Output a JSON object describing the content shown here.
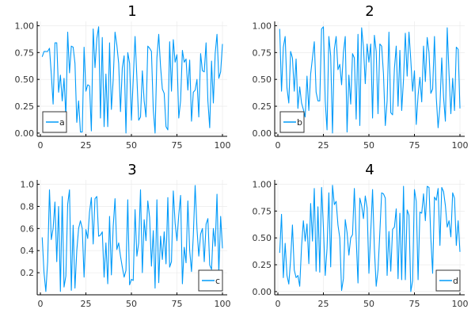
{
  "chart_data": [
    {
      "type": "line",
      "title": "1",
      "legend": "bottom-left",
      "color": "#009af9",
      "grid": true,
      "xlim": [
        0,
        100
      ],
      "ylim": [
        -0.03,
        1.04
      ],
      "xticks": [
        0,
        25,
        50,
        75,
        100
      ],
      "yticks": [
        0,
        0.25,
        0.5,
        0.75,
        1.0
      ],
      "ytick_labels": [
        "0.00",
        "0.25",
        "0.50",
        "0.75",
        "1.00"
      ],
      "series": [
        {
          "name": "a",
          "values": [
            0.71,
            0.76,
            0.76,
            0.76,
            0.79,
            0.55,
            0.27,
            0.84,
            0.84,
            0.38,
            0.54,
            0.3,
            0.51,
            0.15,
            0.94,
            0.56,
            0.81,
            0.8,
            0.65,
            0.1,
            0.3,
            0.01,
            0.01,
            0.8,
            0.39,
            0.45,
            0.44,
            0.02,
            0.97,
            0.61,
            0.88,
            0.99,
            0.14,
            0.89,
            0.06,
            0.55,
            0.06,
            0.84,
            0.22,
            0.5,
            0.94,
            0.82,
            0.65,
            0.2,
            0.61,
            0.72,
            0.0,
            0.75,
            0.65,
            0.12,
            0.5,
            0.9,
            0.52,
            0.12,
            0.15,
            0.58,
            0.3,
            0.15,
            0.81,
            0.79,
            0.76,
            0.22,
            0.0,
            0.7,
            0.92,
            0.62,
            0.41,
            0.37,
            0.06,
            0.03,
            0.85,
            0.39,
            0.87,
            0.66,
            0.73,
            0.14,
            0.3,
            0.77,
            0.66,
            0.69,
            0.4,
            0.68,
            0.11,
            0.38,
            0.4,
            0.5,
            0.15,
            0.74,
            0.58,
            0.57,
            0.84,
            0.3,
            0.05,
            0.67,
            0.28,
            0.74,
            0.92,
            0.51,
            0.57,
            0.83
          ]
        }
      ]
    },
    {
      "type": "line",
      "title": "2",
      "legend": "bottom-left",
      "color": "#009af9",
      "grid": true,
      "xlim": [
        0,
        100
      ],
      "ylim": [
        -0.03,
        1.04
      ],
      "xticks": [
        0,
        25,
        50,
        75,
        100
      ],
      "yticks": [
        0,
        0.25,
        0.5,
        0.75,
        1.0
      ],
      "ytick_labels": [
        "0.00",
        "0.25",
        "0.50",
        "0.75",
        "1.00"
      ],
      "series": [
        {
          "name": "b",
          "values": [
            0.97,
            0.39,
            0.8,
            0.9,
            0.42,
            0.28,
            0.76,
            0.7,
            0.39,
            0.69,
            0.23,
            0.43,
            0.28,
            0.22,
            0.15,
            0.53,
            0.21,
            0.55,
            0.7,
            0.85,
            0.38,
            0.3,
            0.3,
            0.97,
            0.99,
            0.3,
            0.03,
            0.9,
            0.72,
            0.0,
            0.78,
            0.9,
            0.59,
            0.64,
            0.45,
            0.75,
            0.9,
            0.01,
            0.54,
            0.27,
            0.74,
            0.7,
            0.13,
            0.92,
            0.07,
            0.98,
            0.8,
            0.46,
            0.83,
            0.66,
            0.83,
            0.14,
            0.91,
            0.76,
            0.18,
            0.83,
            0.81,
            0.55,
            0.07,
            0.3,
            0.94,
            0.19,
            0.17,
            0.6,
            0.81,
            0.25,
            0.77,
            0.21,
            0.5,
            0.93,
            0.53,
            0.94,
            0.68,
            0.39,
            0.58,
            0.08,
            0.35,
            0.52,
            0.29,
            0.81,
            0.48,
            0.89,
            0.75,
            0.37,
            0.41,
            0.9,
            0.33,
            0.05,
            0.25,
            0.7,
            0.33,
            0.11,
            0.98,
            0.55,
            0.18,
            0.51,
            0.21,
            0.8,
            0.78,
            0.23
          ]
        }
      ]
    },
    {
      "type": "line",
      "title": "3",
      "legend": "bottom-right",
      "color": "#009af9",
      "grid": true,
      "xlim": [
        0,
        100
      ],
      "ylim": [
        0.0,
        1.04
      ],
      "xticks": [
        0,
        25,
        50,
        75,
        100
      ],
      "yticks": [
        0.2,
        0.4,
        0.6,
        0.8,
        1.0
      ],
      "ytick_labels": [
        "0.2",
        "0.4",
        "0.6",
        "0.8",
        "1.0"
      ],
      "series": [
        {
          "name": "c",
          "values": [
            0.52,
            0.2,
            0.03,
            0.3,
            0.95,
            0.5,
            0.6,
            0.84,
            0.3,
            0.8,
            0.03,
            0.89,
            0.07,
            0.17,
            0.82,
            0.95,
            0.04,
            0.63,
            0.06,
            0.4,
            0.6,
            0.67,
            0.6,
            0.16,
            0.59,
            0.51,
            0.75,
            0.88,
            0.46,
            0.87,
            0.89,
            0.53,
            0.54,
            0.57,
            0.16,
            0.47,
            0.1,
            0.71,
            0.18,
            0.62,
            0.87,
            0.41,
            0.47,
            0.35,
            0.25,
            0.16,
            0.22,
            0.86,
            0.09,
            0.14,
            0.13,
            0.77,
            0.35,
            0.47,
            0.95,
            0.2,
            0.68,
            0.49,
            0.85,
            0.7,
            0.26,
            0.58,
            0.06,
            0.86,
            0.11,
            0.53,
            0.32,
            0.57,
            0.28,
            0.88,
            0.25,
            0.3,
            0.94,
            0.65,
            0.49,
            0.72,
            0.9,
            0.1,
            0.43,
            0.29,
            0.85,
            0.4,
            0.21,
            0.54,
            0.99,
            0.6,
            0.35,
            0.55,
            0.6,
            0.3,
            0.64,
            0.69,
            0.27,
            0.23,
            0.6,
            0.44,
            0.91,
            0.2,
            0.71,
            0.42
          ]
        }
      ]
    },
    {
      "type": "line",
      "title": "4",
      "legend": "bottom-right",
      "color": "#009af9",
      "grid": true,
      "xlim": [
        0,
        100
      ],
      "ylim": [
        -0.03,
        1.04
      ],
      "xticks": [
        0,
        25,
        50,
        75,
        100
      ],
      "yticks": [
        0,
        0.25,
        0.5,
        0.75,
        1.0
      ],
      "ytick_labels": [
        "0.00",
        "0.25",
        "0.50",
        "0.75",
        "1.00"
      ],
      "series": [
        {
          "name": "d",
          "values": [
            0.36,
            0.72,
            0.13,
            0.45,
            0.15,
            0.07,
            0.3,
            0.62,
            0.2,
            0.13,
            0.15,
            0.05,
            0.42,
            0.66,
            0.47,
            0.63,
            0.26,
            0.82,
            0.47,
            0.96,
            0.19,
            0.79,
            0.18,
            0.97,
            0.6,
            0.15,
            0.4,
            0.92,
            0.23,
            0.99,
            0.81,
            0.84,
            0.62,
            0.5,
            0.01,
            0.12,
            0.67,
            0.55,
            0.34,
            0.5,
            0.53,
            0.96,
            0.5,
            0.08,
            0.87,
            0.8,
            0.68,
            0.89,
            0.78,
            0.17,
            0.55,
            0.95,
            0.4,
            0.05,
            0.2,
            0.55,
            0.92,
            0.91,
            0.87,
            0.15,
            0.56,
            0.19,
            0.58,
            0.6,
            0.77,
            0.12,
            0.73,
            0.11,
            0.98,
            0.11,
            0.76,
            0.71,
            0.0,
            0.1,
            0.95,
            0.84,
            0.11,
            0.74,
            0.73,
            0.91,
            0.66,
            0.98,
            0.97,
            0.5,
            0.17,
            0.88,
            0.85,
            0.96,
            0.43,
            0.97,
            0.93,
            0.8,
            0.6,
            0.66,
            0.51,
            0.92,
            0.87,
            0.43,
            0.66,
            0.37
          ]
        }
      ]
    }
  ]
}
